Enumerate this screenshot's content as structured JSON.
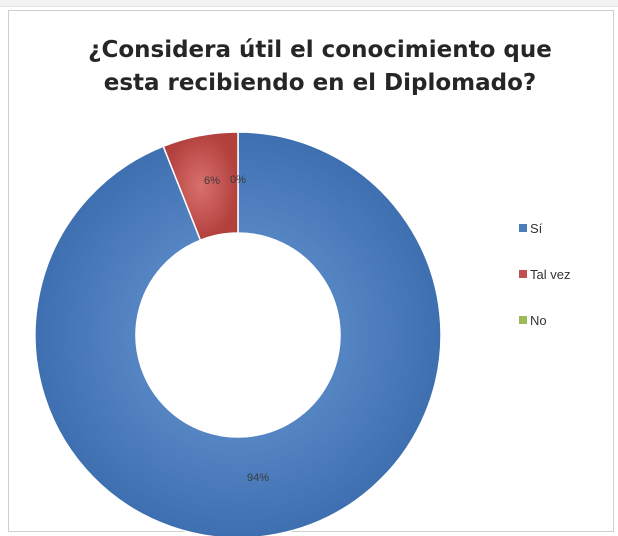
{
  "chart_data": {
    "type": "donut",
    "title_lines": [
      "¿Considera útil el conocimiento que",
      "esta recibiendo en el Diplomado?"
    ],
    "categories": [
      "Sí",
      "Tal vez",
      "No"
    ],
    "values": [
      94,
      6,
      0
    ],
    "data_labels": [
      "94%",
      "6%",
      "0%"
    ],
    "colors": [
      "#4a7ebb",
      "#c0504d",
      "#9bbb59"
    ],
    "legend_position": "right"
  }
}
